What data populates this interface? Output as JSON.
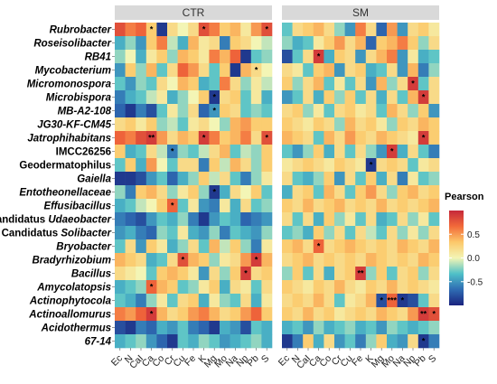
{
  "chart_data": {
    "type": "heatmap",
    "panels": [
      "CTR",
      "SM"
    ],
    "rows": [
      {
        "name": "Rubrobacter",
        "prefix": "",
        "style": "italic"
      },
      {
        "name": "Roseisolibacter",
        "prefix": "",
        "style": "italic"
      },
      {
        "name": "RB41",
        "prefix": "",
        "style": "italic"
      },
      {
        "name": "Mycobacterium",
        "prefix": "",
        "style": "italic"
      },
      {
        "name": "Micromonospora",
        "prefix": "",
        "style": "italic"
      },
      {
        "name": "Microbispora",
        "prefix": "",
        "style": "italic"
      },
      {
        "name": "MB-A2-108",
        "prefix": "",
        "style": "italic"
      },
      {
        "name": "JG30-KF-CM45",
        "prefix": "",
        "style": "italic"
      },
      {
        "name": "Jatrophihabitans",
        "prefix": "",
        "style": "italic"
      },
      {
        "name": "IMCC26256",
        "prefix": "",
        "style": "normal"
      },
      {
        "name": "Geodermatophilus",
        "prefix": "",
        "style": "normal"
      },
      {
        "name": "Gaiella",
        "prefix": "",
        "style": "italic"
      },
      {
        "name": "Entotheonellaceae",
        "prefix": "",
        "style": "italic"
      },
      {
        "name": "Effusibacillus",
        "prefix": "",
        "style": "italic"
      },
      {
        "name": "Udaeobacter",
        "prefix": "Candidatus",
        "style": "italic"
      },
      {
        "name": "Solibacter",
        "prefix": "Candidatus",
        "style": "italic"
      },
      {
        "name": "Bryobacter",
        "prefix": "",
        "style": "italic"
      },
      {
        "name": "Bradyrhizobium",
        "prefix": "",
        "style": "italic"
      },
      {
        "name": "Bacillus",
        "prefix": "",
        "style": "italic"
      },
      {
        "name": "Amycolatopsis",
        "prefix": "",
        "style": "italic"
      },
      {
        "name": "Actinophytocola",
        "prefix": "",
        "style": "italic"
      },
      {
        "name": "Actinoallomurus",
        "prefix": "",
        "style": "italic"
      },
      {
        "name": "Acidothermus",
        "prefix": "",
        "style": "italic"
      },
      {
        "name": "67-14",
        "prefix": "",
        "style": "italic"
      }
    ],
    "columns": [
      "Ec",
      "N",
      "CaI",
      "Ca",
      "Co",
      "Cr",
      "Cu",
      "Fe",
      "K",
      "Mg",
      "Mo",
      "Na",
      "Np",
      "Pb",
      "S"
    ],
    "values": {
      "CTR": [
        [
          0.8,
          0.6,
          0.7,
          0.3,
          -0.9,
          0.2,
          0.0,
          0.2,
          0.8,
          0.6,
          0.3,
          0.4,
          0.1,
          0.5,
          0.8
        ],
        [
          -0.4,
          -0.2,
          -0.5,
          0.3,
          0.6,
          -0.1,
          -0.4,
          0.4,
          0.1,
          0.2,
          -0.6,
          0.3,
          0.2,
          0.0,
          -0.1
        ],
        [
          -0.2,
          0.0,
          -0.4,
          0.1,
          0.3,
          -0.2,
          0.4,
          0.3,
          0.1,
          0.6,
          0.4,
          0.7,
          -0.9,
          -0.3,
          -0.2
        ],
        [
          -0.5,
          0.3,
          -0.2,
          0.4,
          -0.3,
          0.2,
          0.7,
          0.5,
          0.2,
          -0.3,
          0.3,
          -0.9,
          0.4,
          0.2,
          0.0
        ],
        [
          -0.3,
          -0.5,
          -0.2,
          -0.3,
          0.2,
          0.0,
          0.4,
          0.3,
          -0.4,
          -0.3,
          0.6,
          0.2,
          -0.2,
          0.1,
          -0.1
        ],
        [
          -0.6,
          -0.4,
          -0.3,
          -0.1,
          0.1,
          -0.4,
          -0.2,
          0.0,
          0.3,
          -0.9,
          0.2,
          0.3,
          -0.3,
          0.1,
          -0.4
        ],
        [
          -0.7,
          -0.9,
          -0.6,
          -0.8,
          -0.3,
          0.1,
          -0.2,
          0.2,
          -0.7,
          -0.5,
          0.3,
          0.2,
          -0.3,
          -0.2,
          -0.3
        ],
        [
          0.2,
          0.3,
          0.1,
          0.3,
          -0.2,
          -0.1,
          -0.3,
          0.1,
          0.2,
          0.0,
          -0.2,
          0.4,
          0.5,
          0.3,
          0.3
        ],
        [
          0.7,
          0.6,
          0.8,
          0.9,
          0.5,
          0.2,
          0.4,
          0.3,
          0.9,
          0.6,
          0.3,
          0.4,
          0.6,
          0.2,
          0.8
        ],
        [
          0.3,
          -0.4,
          -0.3,
          0.2,
          -0.1,
          -0.6,
          -0.2,
          -0.3,
          -0.1,
          0.2,
          0.4,
          -0.3,
          -0.1,
          -0.2,
          0.3
        ],
        [
          -0.3,
          0.3,
          -0.4,
          0.5,
          0.0,
          -0.3,
          0.2,
          0.2,
          -0.6,
          0.3,
          -0.1,
          0.4,
          0.2,
          -0.2,
          0.3
        ],
        [
          -0.9,
          -0.9,
          -0.8,
          -0.5,
          -0.3,
          -0.7,
          -0.4,
          -0.2,
          0.3,
          -0.1,
          0.2,
          -0.3,
          -0.6,
          -0.2,
          0.1
        ],
        [
          -0.2,
          -0.6,
          0.3,
          0.4,
          0.2,
          -0.2,
          0.1,
          0.3,
          -0.2,
          -0.9,
          -0.4,
          0.2,
          0.0,
          0.3,
          -0.3
        ],
        [
          -0.4,
          -0.3,
          -0.1,
          0.0,
          0.3,
          0.7,
          -0.3,
          0.1,
          -0.5,
          -0.6,
          0.1,
          -0.4,
          0.2,
          -0.3,
          -0.2
        ],
        [
          -0.6,
          -0.7,
          -0.8,
          -0.5,
          -0.3,
          -0.4,
          -0.2,
          -0.6,
          -0.9,
          -0.5,
          -0.3,
          -0.4,
          -0.7,
          -0.6,
          -0.5
        ],
        [
          -0.5,
          -0.4,
          -0.6,
          -0.7,
          -0.2,
          -0.3,
          0.1,
          -0.4,
          -0.5,
          -0.2,
          -0.6,
          -0.3,
          -0.4,
          -0.5,
          -0.2
        ],
        [
          -0.3,
          0.2,
          -0.5,
          0.3,
          0.1,
          -0.4,
          -0.2,
          0.2,
          -0.3,
          0.4,
          -0.1,
          0.3,
          -0.2,
          -0.6,
          0.1
        ],
        [
          0.4,
          0.3,
          0.2,
          -0.4,
          -0.3,
          0.2,
          0.8,
          0.4,
          0.3,
          -0.2,
          0.1,
          0.2,
          0.5,
          0.9,
          0.4
        ],
        [
          0.2,
          0.1,
          0.0,
          -0.3,
          0.3,
          0.4,
          0.3,
          0.1,
          -0.5,
          0.2,
          -0.2,
          0.3,
          0.9,
          0.2,
          0.3
        ],
        [
          -0.4,
          -0.3,
          -0.2,
          0.7,
          0.4,
          0.3,
          -0.3,
          -0.2,
          0.1,
          0.3,
          -0.4,
          0.2,
          0.1,
          -0.3,
          0.2
        ],
        [
          -0.3,
          -0.4,
          -0.6,
          -0.2,
          0.1,
          -0.3,
          0.2,
          0.3,
          -0.4,
          0.1,
          -0.2,
          -0.3,
          0.2,
          -0.4,
          0.1
        ],
        [
          0.6,
          0.5,
          0.7,
          0.9,
          0.4,
          0.2,
          0.3,
          0.5,
          0.6,
          0.4,
          0.2,
          0.3,
          0.5,
          0.7,
          0.3
        ],
        [
          -0.8,
          -0.9,
          -0.6,
          -0.7,
          -0.4,
          -0.5,
          -0.3,
          -0.6,
          -0.7,
          -0.9,
          -0.4,
          -0.5,
          -0.8,
          -0.3,
          -0.4
        ],
        [
          -0.4,
          -0.3,
          -0.2,
          -0.5,
          -0.7,
          -0.9,
          -0.3,
          -0.4,
          -0.2,
          -0.3,
          -0.5,
          -0.4,
          -0.3,
          -0.2,
          -0.4
        ]
      ],
      "SM": [
        [
          -0.3,
          0.2,
          0.3,
          0.4,
          0.2,
          -0.2,
          -0.5,
          0.6,
          0.2,
          -0.7,
          0.5,
          -0.5,
          0.2,
          0.3,
          0.1
        ],
        [
          -0.2,
          -0.4,
          -0.3,
          0.1,
          0.3,
          0.5,
          0.2,
          0.4,
          -0.7,
          0.3,
          0.4,
          0.6,
          0.3,
          -0.2,
          0.2
        ],
        [
          -0.8,
          -0.3,
          0.2,
          0.9,
          -0.4,
          0.3,
          0.2,
          -0.5,
          0.2,
          0.4,
          0.6,
          -0.5,
          0.1,
          -0.4,
          -0.3
        ],
        [
          0.2,
          0.1,
          -0.3,
          0.3,
          0.4,
          -0.5,
          0.2,
          0.3,
          -0.4,
          -0.3,
          0.2,
          -0.5,
          0.4,
          -0.6,
          -0.2
        ],
        [
          0.3,
          -0.2,
          0.2,
          0.4,
          -0.3,
          0.1,
          -0.3,
          0.2,
          -0.5,
          0.4,
          -0.2,
          0.2,
          0.9,
          -0.3,
          0.2
        ],
        [
          -0.5,
          -0.3,
          0.2,
          -0.4,
          0.3,
          -0.2,
          0.3,
          -0.3,
          0.2,
          -0.4,
          0.2,
          -0.3,
          0.4,
          0.9,
          0.2
        ],
        [
          0.2,
          0.3,
          -0.2,
          0.1,
          -0.3,
          0.2,
          0.3,
          0.1,
          0.2,
          -0.3,
          0.4,
          0.2,
          -0.2,
          0.3,
          -0.5
        ],
        [
          0.3,
          0.2,
          0.1,
          0.3,
          0.2,
          -0.2,
          0.4,
          0.2,
          0.3,
          0.1,
          -0.2,
          0.3,
          0.2,
          0.4,
          0.3
        ],
        [
          0.4,
          0.3,
          0.2,
          -0.3,
          0.4,
          0.2,
          0.5,
          0.3,
          0.2,
          0.4,
          0.3,
          0.2,
          0.1,
          0.9,
          0.3
        ],
        [
          -0.3,
          -0.5,
          -0.2,
          0.3,
          -0.4,
          0.2,
          -0.3,
          0.2,
          -0.2,
          -0.5,
          0.9,
          -0.4,
          0.2,
          -0.3,
          -0.6
        ],
        [
          0.1,
          0.2,
          0.3,
          0.2,
          0.1,
          0.3,
          0.2,
          0.1,
          -0.9,
          0.2,
          0.3,
          0.2,
          -0.3,
          0.1,
          0.2
        ],
        [
          0.2,
          -0.3,
          -0.4,
          -0.2,
          0.3,
          -0.5,
          0.2,
          -0.3,
          0.3,
          -0.4,
          0.2,
          -0.6,
          0.1,
          -0.3,
          -0.2
        ],
        [
          -0.4,
          0.2,
          0.3,
          -0.3,
          0.4,
          0.2,
          -0.3,
          0.3,
          0.5,
          0.2,
          -0.2,
          0.3,
          0.4,
          0.2,
          0.3
        ],
        [
          0.3,
          0.2,
          0.4,
          0.2,
          0.3,
          0.4,
          0.2,
          0.3,
          0.2,
          0.4,
          0.2,
          0.3,
          0.2,
          0.3,
          0.4
        ],
        [
          0.2,
          -0.3,
          0.2,
          -0.4,
          0.3,
          -0.2,
          0.1,
          -0.3,
          0.2,
          -0.4,
          -0.3,
          0.2,
          -0.2,
          0.1,
          -0.3
        ],
        [
          -0.3,
          -0.2,
          -0.4,
          0.3,
          -0.2,
          0.2,
          -0.3,
          0.2,
          -0.1,
          -0.3,
          0.2,
          -0.2,
          0.1,
          -0.2,
          0.2
        ],
        [
          0.3,
          0.4,
          0.2,
          0.7,
          0.2,
          0.3,
          0.4,
          0.3,
          0.2,
          0.3,
          0.2,
          0.4,
          0.3,
          0.2,
          0.4
        ],
        [
          0.2,
          0.3,
          0.4,
          0.2,
          0.3,
          0.2,
          0.3,
          0.2,
          0.4,
          0.3,
          0.2,
          0.3,
          0.2,
          0.4,
          0.3
        ],
        [
          -0.2,
          0.3,
          -0.3,
          0.2,
          -0.4,
          0.2,
          0.3,
          0.9,
          -0.2,
          0.3,
          -0.3,
          0.2,
          0.3,
          -0.2,
          0.2
        ],
        [
          0.3,
          0.2,
          0.1,
          0.3,
          0.2,
          0.4,
          0.2,
          0.1,
          0.3,
          0.2,
          0.4,
          0.2,
          0.3,
          0.2,
          0.1
        ],
        [
          0.2,
          0.3,
          0.2,
          0.4,
          0.2,
          -0.3,
          0.1,
          0.2,
          0.4,
          -0.8,
          0.7,
          -0.9,
          -0.8,
          -0.3,
          0.2
        ],
        [
          0.3,
          0.2,
          0.4,
          0.2,
          0.3,
          0.1,
          0.2,
          0.3,
          0.2,
          0.4,
          0.3,
          0.2,
          0.5,
          0.9,
          0.8
        ],
        [
          -0.4,
          -0.3,
          -0.5,
          -0.2,
          -0.4,
          -0.3,
          -0.2,
          -0.4,
          -0.3,
          -0.5,
          -0.2,
          -0.3,
          -0.4,
          -0.3,
          -0.2
        ],
        [
          -0.9,
          -0.6,
          0.3,
          -0.4,
          0.2,
          -0.5,
          -0.3,
          -0.6,
          -0.2,
          0.3,
          -0.4,
          -0.5,
          0.2,
          -0.9,
          -0.6
        ]
      ]
    },
    "significance": {
      "CTR": [
        [
          0,
          3,
          "*"
        ],
        [
          0,
          8,
          "*"
        ],
        [
          0,
          14,
          "*"
        ],
        [
          3,
          13,
          "*"
        ],
        [
          5,
          9,
          "*"
        ],
        [
          6,
          9,
          "*"
        ],
        [
          8,
          3,
          "**"
        ],
        [
          8,
          8,
          "*"
        ],
        [
          8,
          14,
          "*"
        ],
        [
          9,
          5,
          "*"
        ],
        [
          12,
          9,
          "*"
        ],
        [
          13,
          5,
          "*"
        ],
        [
          17,
          6,
          "*"
        ],
        [
          17,
          13,
          "*"
        ],
        [
          18,
          12,
          "*"
        ],
        [
          19,
          3,
          "*"
        ],
        [
          21,
          3,
          "*"
        ]
      ],
      "SM": [
        [
          2,
          3,
          "*"
        ],
        [
          4,
          12,
          "*"
        ],
        [
          5,
          13,
          "*"
        ],
        [
          8,
          13,
          "*"
        ],
        [
          9,
          10,
          "*"
        ],
        [
          10,
          8,
          "*"
        ],
        [
          16,
          3,
          "*"
        ],
        [
          18,
          7,
          "**"
        ],
        [
          20,
          9,
          "*"
        ],
        [
          20,
          10,
          "***"
        ],
        [
          20,
          11,
          "*"
        ],
        [
          21,
          13,
          "**"
        ],
        [
          21,
          14,
          "*"
        ],
        [
          23,
          13,
          "*"
        ]
      ]
    },
    "legend": {
      "title": "Pearson",
      "ticks": [
        0.5,
        0.0,
        -0.5
      ],
      "tick_labels": [
        "0.5",
        "0.0",
        "-0.5"
      ],
      "range": [
        -1,
        1
      ],
      "colors": [
        "#1a237e",
        "#2f6cb3",
        "#4fc0c8",
        "#f3f5b5",
        "#fcc86a",
        "#f26a3a",
        "#c6283a"
      ]
    }
  }
}
